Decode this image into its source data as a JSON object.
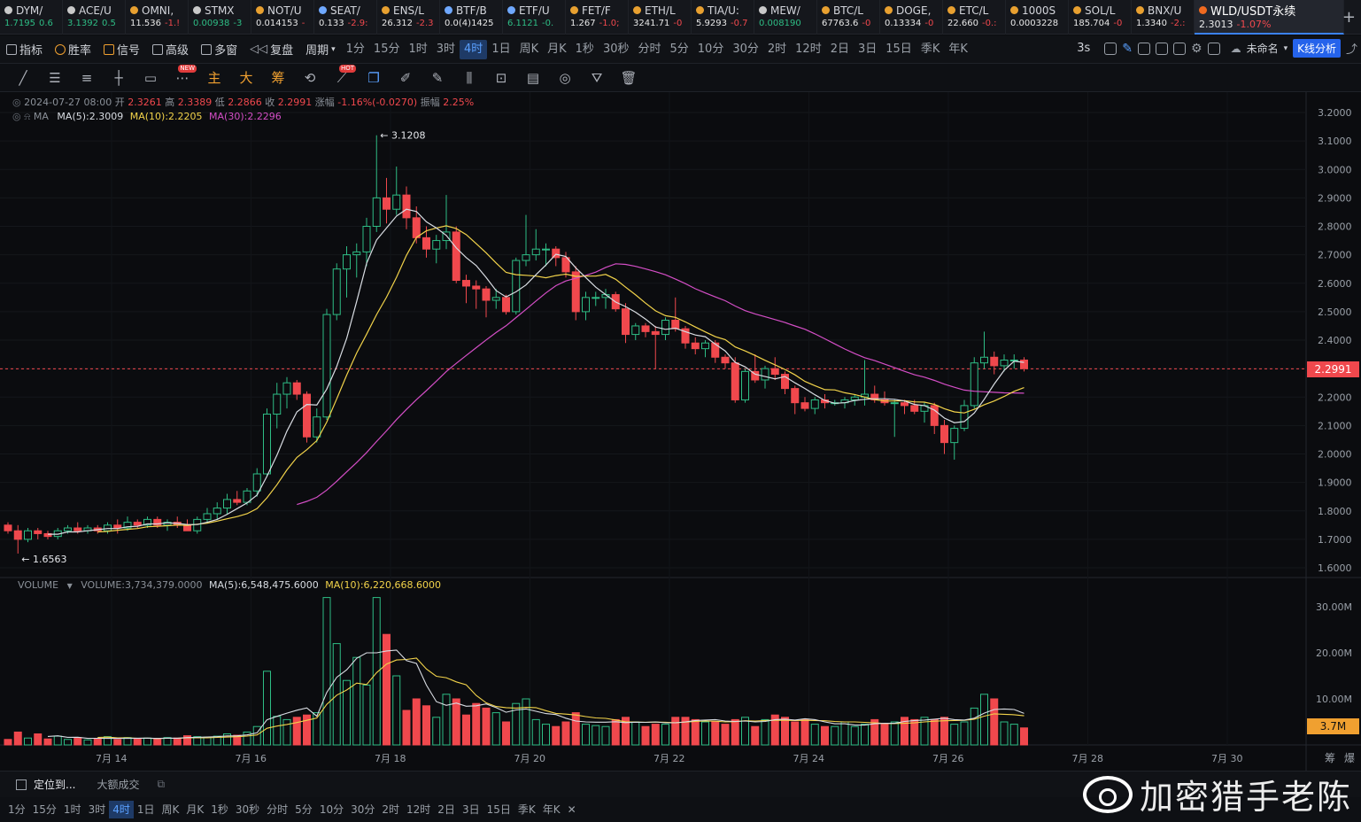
{
  "tickers": [
    {
      "name": "DYM/",
      "price": "1.7195",
      "change": "0.6",
      "up": true,
      "color": "#c9c9c9"
    },
    {
      "name": "ACE/U",
      "price": "3.1392",
      "change": "0.5",
      "up": true,
      "color": "#c9c9c9"
    },
    {
      "name": "OMNI,",
      "price": "11.536",
      "change": "-1.!",
      "up": false,
      "color": "#e8a030"
    },
    {
      "name": "STMX",
      "price": "0.00938",
      "change": "-3",
      "up": true,
      "color": "#c9c9c9"
    },
    {
      "name": "NOT/U",
      "price": "0.014153",
      "change": "-",
      "up": false,
      "color": "#e8a030"
    },
    {
      "name": "SEAT/",
      "price": "0.133",
      "change": "-2.9:",
      "up": false,
      "color": "#6fa8ff"
    },
    {
      "name": "ENS/L",
      "price": "26.312",
      "change": "-2.3",
      "up": false,
      "color": "#e8a030"
    },
    {
      "name": "BTF/B",
      "price": "0.0(4)1425",
      "change": "",
      "up": false,
      "color": "#6fa8ff"
    },
    {
      "name": "ETF/U",
      "price": "6.1121",
      "change": "-0.",
      "up": true,
      "color": "#6fa8ff"
    },
    {
      "name": "FET/F",
      "price": "1.267",
      "change": "-1.0;",
      "up": false,
      "color": "#e8a030"
    },
    {
      "name": "ETH/L",
      "price": "3241.71",
      "change": "-0",
      "up": false,
      "color": "#e8a030"
    },
    {
      "name": "TIA/U:",
      "price": "5.9293",
      "change": "-0.7",
      "up": false,
      "color": "#e8a030"
    },
    {
      "name": "MEW/",
      "price": "0.008190",
      "change": "",
      "up": true,
      "color": "#c9c9c9"
    },
    {
      "name": "BTC/L",
      "price": "67763.6",
      "change": "-0",
      "up": false,
      "color": "#e8a030"
    },
    {
      "name": "DOGE,",
      "price": "0.13334",
      "change": "-0",
      "up": false,
      "color": "#e8a030"
    },
    {
      "name": "ETC/L",
      "price": "22.660",
      "change": "-0.:",
      "up": false,
      "color": "#e8a030"
    },
    {
      "name": "1000S",
      "price": "0.0003228",
      "change": "",
      "up": false,
      "color": "#e8a030"
    },
    {
      "name": "SOL/L",
      "price": "185.704",
      "change": "-0",
      "up": false,
      "color": "#e8a030"
    },
    {
      "name": "BNX/U",
      "price": "1.3340",
      "change": "-2.:",
      "up": false,
      "color": "#e8a030"
    }
  ],
  "active_ticker": {
    "name": "WLD/USDT永续",
    "price": "2.3013",
    "change": "-1.07%"
  },
  "toolbar": {
    "tools": [
      "指标",
      "胜率",
      "信号",
      "高级",
      "多窗",
      "复盘"
    ],
    "period_dropdown": "周期",
    "periods": [
      "1分",
      "15分",
      "1时",
      "3时",
      "4时",
      "1日",
      "周K",
      "月K",
      "1秒",
      "30秒",
      "分时",
      "5分",
      "10分",
      "30分",
      "2时",
      "12时",
      "2日",
      "3日",
      "15日",
      "季K",
      "年K"
    ],
    "active_period": "4时",
    "refresh": "3s",
    "layout_name": "未命名",
    "kline_button": "K线分析"
  },
  "draw_tools": {
    "text_tools": [
      "主",
      "大",
      "筹"
    ],
    "badge_new": "NEW",
    "badge_hot": "HOT"
  },
  "info": {
    "datetime": "2024-07-27 08:00",
    "open_label": "开",
    "open": "2.3261",
    "high_label": "高",
    "high": "2.3389",
    "low_label": "低",
    "low": "2.2866",
    "close_label": "收",
    "close": "2.2991",
    "chg_label": "涨幅",
    "chg": "-1.16%(-0.0270)",
    "amp_label": "振幅",
    "amp": "2.25%"
  },
  "ma_legend": {
    "label": "MA",
    "ma5": "MA(5):2.3009",
    "ma10": "MA(10):2.2205",
    "ma30": "MA(30):2.2296"
  },
  "vol_legend": {
    "label": "VOLUME",
    "vol": "VOLUME:3,734,379.0000",
    "ma5": "MA(5):6,548,475.6000",
    "ma10": "MA(10):6,220,668.6000"
  },
  "annotations": {
    "high": "3.1208",
    "low": "1.6563"
  },
  "current_price": "2.2991",
  "current_volume": "3.7M",
  "colors": {
    "up": "#2ebd85",
    "down": "#f0484d",
    "ma5": "#d9dde3",
    "ma10": "#f2d34a",
    "ma30": "#d44ec6",
    "accent": "#3b82f6"
  },
  "chart_data": {
    "type": "candlestick",
    "interval": "4h",
    "price_axis": {
      "ticks": [
        "1.6000",
        "1.7000",
        "1.8000",
        "1.9000",
        "2.0000",
        "2.1000",
        "2.2000",
        "2.3000",
        "2.4000",
        "2.5000",
        "2.6000",
        "2.7000",
        "2.8000",
        "2.9000",
        "3.0000",
        "3.1000",
        "3.2000"
      ],
      "range": [
        1.6,
        3.2
      ]
    },
    "volume_axis": {
      "ticks": [
        "10.00M",
        "20.00M",
        "30.00M"
      ]
    },
    "date_ticks": [
      "7月 14",
      "7月 16",
      "7月 18",
      "7月 20",
      "7月 22",
      "7月 24",
      "7月 26",
      "7月 28",
      "7月 30"
    ],
    "candles": [
      [
        1.75,
        1.76,
        1.72,
        1.73,
        1.2
      ],
      [
        1.73,
        1.75,
        1.65,
        1.7,
        2.8
      ],
      [
        1.7,
        1.74,
        1.69,
        1.73,
        1.5
      ],
      [
        1.73,
        1.74,
        1.7,
        1.72,
        2.4
      ],
      [
        1.72,
        1.73,
        1.7,
        1.71,
        1.3
      ],
      [
        1.71,
        1.74,
        1.7,
        1.73,
        1.9
      ],
      [
        1.73,
        1.75,
        1.72,
        1.74,
        1.2
      ],
      [
        1.74,
        1.76,
        1.72,
        1.73,
        1.6
      ],
      [
        1.73,
        1.75,
        1.72,
        1.74,
        1.1
      ],
      [
        1.74,
        1.75,
        1.72,
        1.73,
        1.4
      ],
      [
        1.73,
        1.76,
        1.72,
        1.75,
        1.8
      ],
      [
        1.75,
        1.77,
        1.72,
        1.74,
        1.2
      ],
      [
        1.74,
        1.78,
        1.73,
        1.76,
        1.6
      ],
      [
        1.76,
        1.77,
        1.74,
        1.75,
        1.3
      ],
      [
        1.75,
        1.78,
        1.74,
        1.77,
        1.5
      ],
      [
        1.77,
        1.78,
        1.74,
        1.75,
        1.4
      ],
      [
        1.75,
        1.77,
        1.73,
        1.76,
        1.6
      ],
      [
        1.76,
        1.78,
        1.74,
        1.75,
        1.5
      ],
      [
        1.75,
        1.77,
        1.73,
        1.73,
        2.0
      ],
      [
        1.73,
        1.78,
        1.72,
        1.77,
        1.8
      ],
      [
        1.77,
        1.81,
        1.76,
        1.79,
        1.7
      ],
      [
        1.79,
        1.83,
        1.77,
        1.81,
        1.9
      ],
      [
        1.81,
        1.86,
        1.79,
        1.84,
        2.4
      ],
      [
        1.84,
        1.87,
        1.82,
        1.83,
        2.1
      ],
      [
        1.83,
        1.88,
        1.82,
        1.87,
        2.8
      ],
      [
        1.87,
        1.95,
        1.85,
        1.93,
        4.0
      ],
      [
        1.93,
        2.16,
        1.92,
        2.14,
        16.0
      ],
      [
        2.14,
        2.25,
        2.09,
        2.21,
        6.2
      ],
      [
        2.21,
        2.27,
        2.16,
        2.25,
        5.5
      ],
      [
        2.25,
        2.26,
        2.19,
        2.21,
        6.0
      ],
      [
        2.21,
        2.22,
        2.04,
        2.06,
        6.5
      ],
      [
        2.06,
        2.16,
        2.04,
        2.13,
        7.0
      ],
      [
        2.13,
        2.51,
        2.12,
        2.49,
        32.0
      ],
      [
        2.49,
        2.67,
        2.47,
        2.65,
        22.0
      ],
      [
        2.65,
        2.73,
        2.55,
        2.7,
        14.0
      ],
      [
        2.7,
        2.74,
        2.62,
        2.71,
        19.0
      ],
      [
        2.71,
        2.83,
        2.66,
        2.8,
        13.0
      ],
      [
        2.8,
        3.12,
        2.78,
        2.9,
        32.0
      ],
      [
        2.9,
        2.97,
        2.81,
        2.86,
        24.0
      ],
      [
        2.86,
        3.01,
        2.84,
        2.91,
        15.0
      ],
      [
        2.91,
        2.94,
        2.79,
        2.83,
        7.5
      ],
      [
        2.83,
        2.87,
        2.74,
        2.76,
        10.0
      ],
      [
        2.76,
        2.8,
        2.69,
        2.72,
        8.5
      ],
      [
        2.72,
        2.77,
        2.67,
        2.75,
        6.0
      ],
      [
        2.75,
        2.91,
        2.72,
        2.78,
        11.0
      ],
      [
        2.78,
        2.8,
        2.6,
        2.61,
        10.0
      ],
      [
        2.61,
        2.63,
        2.53,
        2.59,
        6.5
      ],
      [
        2.59,
        2.61,
        2.51,
        2.58,
        9.0
      ],
      [
        2.58,
        2.59,
        2.48,
        2.54,
        8.0
      ],
      [
        2.54,
        2.58,
        2.51,
        2.55,
        7.0
      ],
      [
        2.55,
        2.56,
        2.49,
        2.5,
        5.0
      ],
      [
        2.5,
        2.69,
        2.49,
        2.68,
        9.0
      ],
      [
        2.68,
        2.84,
        2.66,
        2.7,
        10.0
      ],
      [
        2.7,
        2.79,
        2.68,
        2.72,
        5.5
      ],
      [
        2.72,
        2.74,
        2.66,
        2.72,
        4.5
      ],
      [
        2.72,
        2.73,
        2.66,
        2.69,
        4.0
      ],
      [
        2.69,
        2.71,
        2.62,
        2.64,
        5.0
      ],
      [
        2.64,
        2.66,
        2.47,
        2.5,
        7.0
      ],
      [
        2.5,
        2.57,
        2.47,
        2.55,
        4.5
      ],
      [
        2.55,
        2.57,
        2.52,
        2.55,
        4.2
      ],
      [
        2.55,
        2.58,
        2.51,
        2.56,
        4.0
      ],
      [
        2.56,
        2.57,
        2.5,
        2.51,
        5.5
      ],
      [
        2.51,
        2.53,
        2.39,
        2.42,
        6.0
      ],
      [
        2.42,
        2.46,
        2.4,
        2.45,
        5.0
      ],
      [
        2.45,
        2.46,
        2.41,
        2.43,
        4.0
      ],
      [
        2.43,
        2.45,
        2.3,
        2.42,
        4.5
      ],
      [
        2.42,
        2.48,
        2.4,
        2.47,
        4.5
      ],
      [
        2.47,
        2.55,
        2.43,
        2.44,
        6.0
      ],
      [
        2.44,
        2.45,
        2.37,
        2.39,
        6.0
      ],
      [
        2.39,
        2.41,
        2.35,
        2.37,
        5.5
      ],
      [
        2.37,
        2.4,
        2.34,
        2.39,
        5.0
      ],
      [
        2.39,
        2.4,
        2.32,
        2.34,
        5.0
      ],
      [
        2.34,
        2.35,
        2.3,
        2.32,
        4.5
      ],
      [
        2.32,
        2.34,
        2.18,
        2.19,
        5.5
      ],
      [
        2.19,
        2.3,
        2.18,
        2.29,
        6.0
      ],
      [
        2.29,
        2.35,
        2.25,
        2.26,
        4.0
      ],
      [
        2.26,
        2.31,
        2.23,
        2.3,
        5.5
      ],
      [
        2.3,
        2.34,
        2.26,
        2.28,
        6.5
      ],
      [
        2.28,
        2.29,
        2.21,
        2.23,
        6.0
      ],
      [
        2.23,
        2.24,
        2.14,
        2.18,
        5.0
      ],
      [
        2.18,
        2.2,
        2.15,
        2.16,
        5.5
      ],
      [
        2.16,
        2.2,
        2.14,
        2.19,
        4.5
      ],
      [
        2.19,
        2.21,
        2.16,
        2.18,
        4.0
      ],
      [
        2.18,
        2.19,
        2.17,
        2.18,
        4.0
      ],
      [
        2.18,
        2.2,
        2.16,
        2.19,
        5.0
      ],
      [
        2.19,
        2.21,
        2.17,
        2.2,
        4.0
      ],
      [
        2.2,
        2.33,
        2.17,
        2.21,
        4.5
      ],
      [
        2.21,
        2.24,
        2.18,
        2.19,
        5.5
      ],
      [
        2.19,
        2.22,
        2.17,
        2.18,
        4.5
      ],
      [
        2.18,
        2.19,
        2.06,
        2.18,
        5.0
      ],
      [
        2.18,
        2.19,
        2.14,
        2.17,
        6.0
      ],
      [
        2.17,
        2.19,
        2.14,
        2.15,
        5.5
      ],
      [
        2.15,
        2.18,
        2.11,
        2.17,
        6.0
      ],
      [
        2.17,
        2.18,
        2.07,
        2.1,
        5.5
      ],
      [
        2.1,
        2.12,
        2.0,
        2.04,
        6.0
      ],
      [
        2.04,
        2.1,
        1.98,
        2.09,
        4.5
      ],
      [
        2.09,
        2.19,
        2.08,
        2.17,
        5.0
      ],
      [
        2.17,
        2.34,
        2.16,
        2.32,
        8.0
      ],
      [
        2.32,
        2.43,
        2.3,
        2.34,
        11.0
      ],
      [
        2.34,
        2.36,
        2.28,
        2.31,
        10.0
      ],
      [
        2.31,
        2.35,
        2.29,
        2.33,
        5.0
      ],
      [
        2.33,
        2.35,
        2.3,
        2.33,
        4.5
      ],
      [
        2.33,
        2.34,
        2.29,
        2.3,
        3.7
      ]
    ]
  }
}
